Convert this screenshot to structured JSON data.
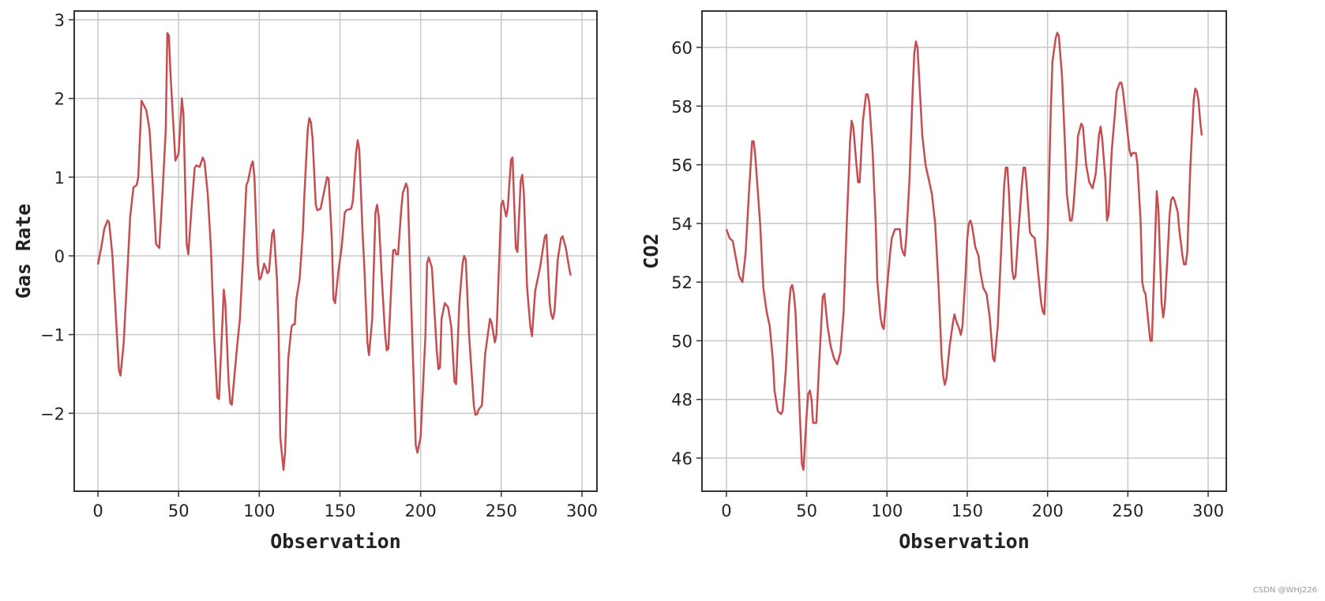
{
  "chart_data": [
    {
      "type": "line",
      "title": "",
      "xlabel": "Observation",
      "ylabel": "Gas Rate",
      "color": "#c44e52",
      "xlim": [
        -14.7,
        309.3
      ],
      "ylim": [
        -2.99,
        3.11
      ],
      "xticks": [
        0,
        50,
        100,
        150,
        200,
        250,
        300
      ],
      "yticks": [
        -2,
        -1,
        0,
        1,
        2,
        3
      ],
      "grid": true,
      "x": [
        0,
        2,
        4,
        6,
        7,
        9,
        13,
        14,
        16,
        18,
        20,
        22,
        24,
        25,
        27,
        30,
        32,
        34,
        36,
        38,
        40,
        42,
        43,
        44,
        45,
        48,
        50,
        52,
        53,
        55,
        56,
        58,
        60,
        61,
        63,
        65,
        66,
        68,
        70,
        72,
        74,
        75,
        77,
        78,
        79,
        81,
        82,
        83,
        86,
        88,
        90,
        92,
        93,
        95,
        96,
        97,
        99,
        100,
        101,
        103,
        104,
        105,
        106,
        108,
        109,
        111,
        112,
        113,
        115,
        116,
        118,
        120,
        121,
        122,
        123,
        125,
        127,
        128,
        130,
        131,
        132,
        133,
        135,
        136,
        138,
        140,
        142,
        143,
        145,
        146,
        147,
        149,
        151,
        153,
        154,
        157,
        158,
        160,
        161,
        162,
        164,
        165,
        167,
        168,
        170,
        172,
        173,
        174,
        176,
        178,
        179,
        180,
        182,
        183,
        184,
        185,
        186,
        188,
        189,
        191,
        192,
        194,
        197,
        198,
        200,
        203,
        204,
        205,
        207,
        210,
        211,
        212,
        213,
        215,
        217,
        219,
        221,
        222,
        224,
        226,
        227,
        228,
        230,
        233,
        234,
        235,
        236,
        238,
        240,
        243,
        244,
        246,
        247,
        250,
        251,
        253,
        254,
        256,
        257,
        259,
        260,
        262,
        263,
        264,
        266,
        268,
        269,
        271,
        274,
        277,
        278,
        280,
        281,
        282,
        283,
        285,
        287,
        288,
        290,
        292,
        293
      ],
      "y": [
        -0.11,
        0.1,
        0.35,
        0.45,
        0.42,
        0.0,
        -1.45,
        -1.52,
        -1.1,
        -0.3,
        0.5,
        0.87,
        0.9,
        1.0,
        1.97,
        1.85,
        1.6,
        0.9,
        0.15,
        0.1,
        0.8,
        1.6,
        2.83,
        2.8,
        2.3,
        1.21,
        1.3,
        2.0,
        1.8,
        0.15,
        0.02,
        0.6,
        1.12,
        1.15,
        1.13,
        1.25,
        1.2,
        0.8,
        0.1,
        -1.0,
        -1.8,
        -1.82,
        -0.9,
        -0.43,
        -0.6,
        -1.6,
        -1.87,
        -1.89,
        -1.2,
        -0.8,
        0.0,
        0.9,
        0.95,
        1.15,
        1.2,
        1.0,
        -0.1,
        -0.3,
        -0.28,
        -0.1,
        -0.15,
        -0.22,
        -0.2,
        0.28,
        0.33,
        -0.3,
        -1.0,
        -2.3,
        -2.72,
        -2.5,
        -1.3,
        -0.9,
        -0.87,
        -0.87,
        -0.55,
        -0.3,
        0.3,
        0.8,
        1.6,
        1.75,
        1.7,
        1.5,
        0.65,
        0.58,
        0.6,
        0.8,
        1.0,
        0.98,
        0.2,
        -0.55,
        -0.6,
        -0.2,
        0.1,
        0.55,
        0.58,
        0.6,
        0.7,
        1.3,
        1.47,
        1.35,
        0.3,
        -0.1,
        -1.1,
        -1.26,
        -0.8,
        0.55,
        0.65,
        0.5,
        -0.3,
        -1.0,
        -1.2,
        -1.18,
        -0.3,
        0.07,
        0.08,
        0.02,
        0.02,
        0.6,
        0.8,
        0.92,
        0.85,
        -0.5,
        -2.4,
        -2.5,
        -2.3,
        -1.0,
        -0.1,
        -0.02,
        -0.15,
        -1.2,
        -1.44,
        -1.42,
        -0.8,
        -0.6,
        -0.65,
        -0.9,
        -1.6,
        -1.63,
        -0.6,
        -0.1,
        0.0,
        -0.05,
        -1.0,
        -1.9,
        -2.02,
        -2.01,
        -1.95,
        -1.9,
        -1.25,
        -0.8,
        -0.85,
        -1.1,
        -1.0,
        0.65,
        0.7,
        0.5,
        0.6,
        1.22,
        1.25,
        0.1,
        0.05,
        0.95,
        1.03,
        0.8,
        -0.4,
        -0.9,
        -1.02,
        -0.45,
        -0.15,
        0.25,
        0.27,
        -0.6,
        -0.75,
        -0.8,
        -0.7,
        -0.05,
        0.22,
        0.25,
        0.1,
        -0.15,
        -0.25
      ]
    },
    {
      "type": "line",
      "title": "",
      "xlabel": "Observation",
      "ylabel": "CO2",
      "color": "#c44e52",
      "xlim": [
        -15.2,
        311.3
      ],
      "ylim": [
        44.87,
        61.24
      ],
      "xticks": [
        0,
        50,
        100,
        150,
        200,
        250,
        300
      ],
      "yticks": [
        46,
        48,
        50,
        52,
        54,
        56,
        58,
        60
      ],
      "grid": true,
      "x": [
        0,
        2,
        4,
        6,
        8,
        10,
        12,
        14,
        16,
        17,
        18,
        21,
        23,
        25,
        27,
        29,
        30,
        32,
        34,
        35,
        37,
        39,
        40,
        41,
        42,
        43,
        45,
        47,
        48,
        50,
        51,
        52,
        53,
        54,
        56,
        58,
        60,
        61,
        63,
        65,
        67,
        69,
        71,
        73,
        75,
        77,
        78,
        79,
        81,
        82,
        83,
        85,
        87,
        88,
        89,
        91,
        93,
        94,
        96,
        97,
        98,
        100,
        102,
        103,
        105,
        107,
        108,
        109,
        110,
        111,
        112,
        114,
        116,
        117,
        118,
        119,
        120,
        122,
        124,
        126,
        128,
        130,
        132,
        134,
        135,
        136,
        137,
        139,
        141,
        142,
        143,
        145,
        146,
        147,
        149,
        150,
        151,
        152,
        153,
        155,
        157,
        158,
        160,
        162,
        164,
        166,
        167,
        169,
        171,
        173,
        174,
        175,
        176,
        178,
        179,
        180,
        182,
        184,
        185,
        186,
        187,
        189,
        190,
        192,
        194,
        196,
        197,
        198,
        200,
        202,
        203,
        205,
        206,
        207,
        209,
        211,
        212,
        214,
        215,
        216,
        218,
        219,
        221,
        222,
        224,
        226,
        227,
        228,
        230,
        232,
        233,
        234,
        236,
        237,
        238,
        240,
        242,
        243,
        245,
        246,
        247,
        249,
        251,
        252,
        253,
        255,
        256,
        258,
        259,
        260,
        261,
        263,
        264,
        265,
        267,
        268,
        269,
        271,
        272,
        273,
        275,
        276,
        277,
        278,
        279,
        281,
        282,
        284,
        285,
        286,
        287,
        289,
        291,
        292,
        293,
        294,
        295,
        296
      ],
      "y": [
        53.8,
        53.5,
        53.4,
        52.8,
        52.2,
        52.0,
        53.0,
        55.0,
        56.8,
        56.8,
        56.3,
        54.0,
        51.8,
        51.0,
        50.5,
        49.3,
        48.3,
        47.6,
        47.5,
        47.6,
        49.0,
        51.2,
        51.8,
        51.9,
        51.6,
        51.0,
        48.5,
        45.8,
        45.6,
        47.5,
        48.2,
        48.3,
        48.0,
        47.2,
        47.2,
        49.5,
        51.5,
        51.6,
        50.5,
        49.8,
        49.4,
        49.2,
        49.6,
        51.0,
        54.0,
        56.8,
        57.5,
        57.3,
        56.0,
        55.4,
        55.4,
        57.5,
        58.4,
        58.4,
        58.1,
        56.5,
        54.0,
        52.0,
        50.8,
        50.5,
        50.4,
        51.8,
        53.0,
        53.5,
        53.8,
        53.8,
        53.8,
        53.2,
        53.0,
        52.9,
        53.5,
        55.5,
        58.5,
        59.8,
        60.2,
        60.0,
        59.0,
        57.0,
        56.0,
        55.5,
        55.0,
        54.0,
        52.0,
        49.5,
        48.8,
        48.5,
        48.7,
        49.8,
        50.6,
        50.9,
        50.7,
        50.4,
        50.2,
        50.5,
        52.3,
        53.5,
        54.0,
        54.1,
        53.9,
        53.2,
        52.9,
        52.4,
        51.8,
        51.6,
        50.8,
        49.4,
        49.3,
        50.5,
        53.0,
        55.3,
        55.9,
        55.9,
        55.0,
        52.4,
        52.1,
        52.2,
        53.8,
        55.3,
        55.9,
        55.9,
        55.3,
        53.7,
        53.6,
        53.5,
        52.4,
        51.3,
        51.0,
        50.9,
        53.5,
        57.8,
        59.5,
        60.3,
        60.5,
        60.4,
        59.0,
        56.5,
        55.0,
        54.1,
        54.1,
        54.5,
        56.0,
        57.0,
        57.4,
        57.3,
        56.0,
        55.4,
        55.3,
        55.2,
        55.7,
        57.0,
        57.3,
        56.9,
        55.5,
        54.1,
        54.3,
        56.5,
        57.8,
        58.5,
        58.8,
        58.8,
        58.5,
        57.5,
        56.5,
        56.3,
        56.4,
        56.4,
        56.0,
        54.0,
        52.0,
        51.7,
        51.6,
        50.5,
        50.0,
        50.0,
        53.5,
        55.1,
        54.5,
        51.3,
        50.8,
        51.2,
        53.2,
        54.3,
        54.8,
        54.9,
        54.8,
        54.4,
        53.8,
        52.9,
        52.6,
        52.6,
        53.0,
        56.0,
        58.2,
        58.6,
        58.5,
        58.2,
        57.5,
        57.0
      ]
    }
  ],
  "watermark": "CSDN @WHJ226"
}
